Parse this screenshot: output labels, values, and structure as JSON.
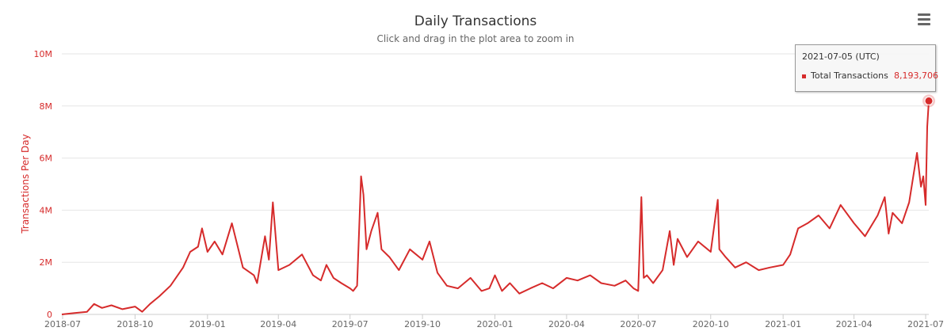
{
  "header": {
    "title": "Daily Transactions",
    "subtitle": "Click and drag in the plot area to zoom in",
    "menu_icon": "hamburger-menu-icon"
  },
  "tooltip": {
    "date": "2021-07-05 (UTC)",
    "series": "Total Transactions",
    "value": "8,193,706"
  },
  "colors": {
    "series": "#d62b2b",
    "axis_text": "#d62b2b",
    "grid": "#e6e6e6"
  },
  "chart_data": {
    "type": "line",
    "title": "Daily Transactions",
    "subtitle": "Click and drag in the plot area to zoom in",
    "xlabel": "",
    "ylabel": "Transactions Per Day",
    "ylim": [
      0,
      10000000
    ],
    "y_ticks": [
      0,
      2000000,
      4000000,
      6000000,
      8000000,
      10000000
    ],
    "y_tick_labels": [
      "0",
      "2M",
      "4M",
      "6M",
      "8M",
      "10M"
    ],
    "x_range": [
      "2018-06-30",
      "2021-07-05"
    ],
    "x_ticks": [
      "2018-07-01",
      "2018-10-01",
      "2019-01-01",
      "2019-04-01",
      "2019-07-01",
      "2019-10-01",
      "2020-01-01",
      "2020-04-01",
      "2020-07-01",
      "2020-10-01",
      "2021-01-01",
      "2021-04-01",
      "2021-07-01"
    ],
    "x_tick_labels": [
      "2018-07",
      "2018-10",
      "2019-01",
      "2019-04",
      "2019-07",
      "2019-10",
      "2020-01",
      "2020-04",
      "2020-07",
      "2020-10",
      "2021-01",
      "2021-04",
      "2021-07"
    ],
    "grid": true,
    "legend": "none",
    "series": [
      {
        "name": "Total Transactions",
        "x": [
          "2018-06-30",
          "2018-07-15",
          "2018-08-01",
          "2018-08-10",
          "2018-08-20",
          "2018-09-01",
          "2018-09-15",
          "2018-10-01",
          "2018-10-10",
          "2018-10-20",
          "2018-11-01",
          "2018-11-15",
          "2018-12-01",
          "2018-12-10",
          "2018-12-20",
          "2018-12-25",
          "2019-01-01",
          "2019-01-10",
          "2019-01-20",
          "2019-02-01",
          "2019-02-15",
          "2019-03-01",
          "2019-03-05",
          "2019-03-15",
          "2019-03-20",
          "2019-03-25",
          "2019-04-01",
          "2019-04-15",
          "2019-05-01",
          "2019-05-15",
          "2019-05-25",
          "2019-06-01",
          "2019-06-10",
          "2019-06-20",
          "2019-07-01",
          "2019-07-05",
          "2019-07-10",
          "2019-07-15",
          "2019-07-18",
          "2019-07-22",
          "2019-07-28",
          "2019-08-05",
          "2019-08-10",
          "2019-08-20",
          "2019-09-01",
          "2019-09-15",
          "2019-10-01",
          "2019-10-10",
          "2019-10-20",
          "2019-11-01",
          "2019-11-15",
          "2019-12-01",
          "2019-12-15",
          "2019-12-25",
          "2020-01-01",
          "2020-01-10",
          "2020-01-20",
          "2020-02-01",
          "2020-02-15",
          "2020-03-01",
          "2020-03-15",
          "2020-04-01",
          "2020-04-15",
          "2020-05-01",
          "2020-05-15",
          "2020-06-01",
          "2020-06-15",
          "2020-06-25",
          "2020-07-01",
          "2020-07-05",
          "2020-07-08",
          "2020-07-12",
          "2020-07-20",
          "2020-08-01",
          "2020-08-10",
          "2020-08-15",
          "2020-08-20",
          "2020-09-01",
          "2020-09-15",
          "2020-10-01",
          "2020-10-10",
          "2020-10-12",
          "2020-10-20",
          "2020-11-01",
          "2020-11-15",
          "2020-12-01",
          "2020-12-15",
          "2021-01-01",
          "2021-01-10",
          "2021-01-20",
          "2021-02-01",
          "2021-02-15",
          "2021-03-01",
          "2021-03-15",
          "2021-04-01",
          "2021-04-15",
          "2021-05-01",
          "2021-05-10",
          "2021-05-15",
          "2021-05-20",
          "2021-06-01",
          "2021-06-10",
          "2021-06-20",
          "2021-06-25",
          "2021-06-28",
          "2021-07-01",
          "2021-07-03",
          "2021-07-05"
        ],
        "values": [
          0,
          50000,
          100000,
          400000,
          250000,
          350000,
          200000,
          300000,
          100000,
          400000,
          700000,
          1100000,
          1800000,
          2400000,
          2600000,
          3300000,
          2400000,
          2800000,
          2300000,
          3500000,
          1800000,
          1500000,
          1200000,
          3000000,
          2100000,
          4300000,
          1700000,
          1900000,
          2300000,
          1500000,
          1300000,
          1900000,
          1400000,
          1200000,
          1000000,
          900000,
          1100000,
          5300000,
          4600000,
          2500000,
          3200000,
          3900000,
          2500000,
          2200000,
          1700000,
          2500000,
          2100000,
          2800000,
          1600000,
          1100000,
          1000000,
          1400000,
          900000,
          1000000,
          1500000,
          900000,
          1200000,
          800000,
          1000000,
          1200000,
          1000000,
          1400000,
          1300000,
          1500000,
          1200000,
          1100000,
          1300000,
          1000000,
          900000,
          4500000,
          1400000,
          1500000,
          1200000,
          1700000,
          3200000,
          1900000,
          2900000,
          2200000,
          2800000,
          2400000,
          4400000,
          2500000,
          2200000,
          1800000,
          2000000,
          1700000,
          1800000,
          1900000,
          2300000,
          3300000,
          3500000,
          3800000,
          3300000,
          4200000,
          3500000,
          3000000,
          3800000,
          4500000,
          3100000,
          3900000,
          3500000,
          4300000,
          6200000,
          4900000,
          5300000,
          4200000,
          7200000,
          8193706
        ]
      }
    ]
  }
}
